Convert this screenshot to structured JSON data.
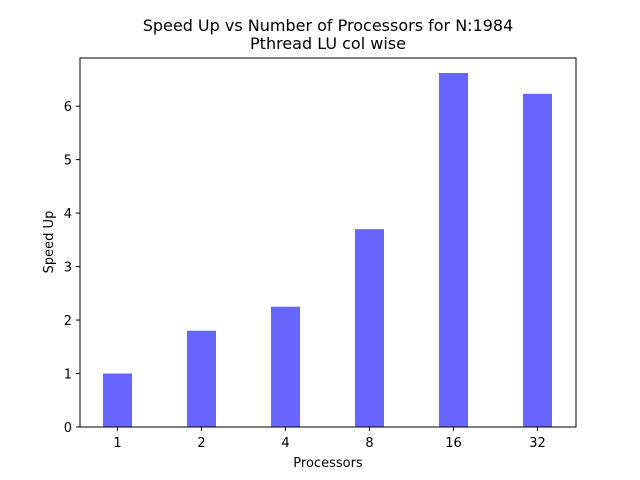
{
  "chart_data": {
    "type": "bar",
    "title": "Speed Up vs Number of Processors for N:1984",
    "subtitle": "Pthread LU col wise",
    "xlabel": "Processors",
    "ylabel": "Speed Up",
    "categories": [
      "1",
      "2",
      "4",
      "8",
      "16",
      "32"
    ],
    "values": [
      1.0,
      1.8,
      2.25,
      3.7,
      6.62,
      6.23
    ],
    "ylim": [
      0,
      6.9
    ],
    "yticks": [
      0,
      1,
      2,
      3,
      4,
      5,
      6
    ],
    "bar_color": "#6666ff",
    "grid": false
  }
}
